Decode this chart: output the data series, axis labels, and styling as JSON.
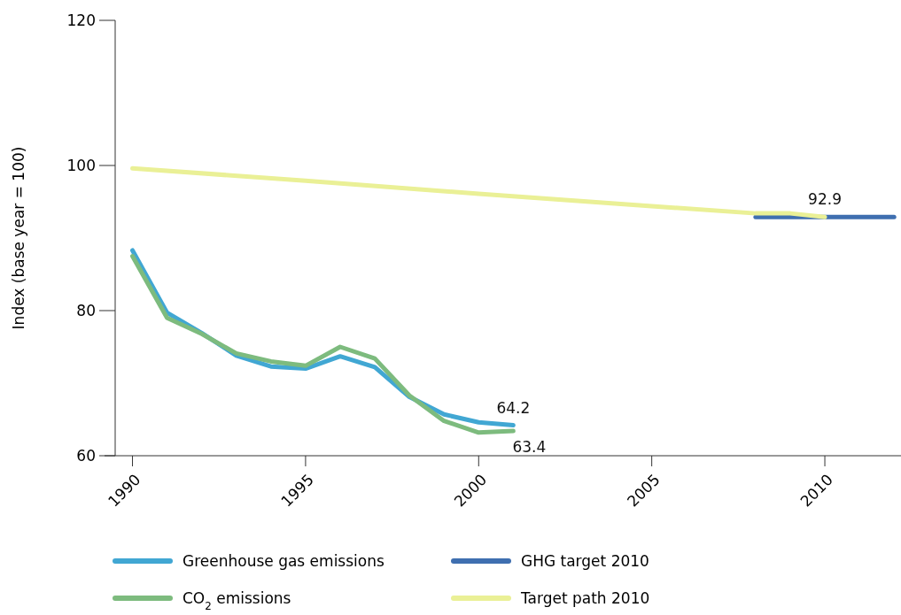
{
  "chart_data": {
    "type": "line",
    "ylabel": "Index (base year = 100)",
    "xlim": [
      1989.5,
      2012.2
    ],
    "xticks": [
      1990,
      1995,
      2000,
      2005,
      2010
    ],
    "ylim": [
      60,
      120
    ],
    "yticks": [
      60,
      80,
      100,
      120
    ],
    "grid": false,
    "legend": "bottom",
    "marker": "none",
    "line_style": "solid",
    "series": [
      {
        "name": "Greenhouse gas emissions",
        "color": "#41a7d3",
        "x": [
          1990,
          1991,
          1992,
          1993,
          1994,
          1995,
          1996,
          1997,
          1998,
          1999,
          2000,
          2001
        ],
        "values": [
          88.3,
          79.7,
          76.9,
          73.8,
          72.3,
          72.0,
          73.7,
          72.2,
          68.1,
          65.7,
          64.6,
          64.2
        ],
        "value_labels": [
          null,
          null,
          null,
          null,
          null,
          null,
          null,
          null,
          null,
          null,
          null,
          "64.2"
        ]
      },
      {
        "name": "GHG target 2010",
        "color": "#3f6fb0",
        "x": [
          2008,
          2010,
          2012
        ],
        "values": [
          92.9,
          92.9,
          92.9
        ],
        "value_labels": [
          null,
          "92.9",
          null
        ]
      },
      {
        "name": "CO$_{2}$ emissions",
        "color": "#7dbb7e",
        "x": [
          1990,
          1991,
          1992,
          1993,
          1994,
          1995,
          1996,
          1997,
          1998,
          1999,
          2000,
          2001
        ],
        "values": [
          87.5,
          79.0,
          76.8,
          74.1,
          73.0,
          72.4,
          75.0,
          73.4,
          68.3,
          64.8,
          63.2,
          63.4
        ],
        "value_labels": [
          null,
          null,
          null,
          null,
          null,
          null,
          null,
          null,
          null,
          null,
          null,
          "63.4"
        ]
      },
      {
        "name": "Target path 2010",
        "color": "#eaf096",
        "x": [
          1990,
          1995,
          2000,
          2005,
          2008,
          2009,
          2010
        ],
        "values": [
          99.6,
          97.9,
          96.1,
          94.4,
          93.4,
          93.4,
          92.9
        ]
      }
    ]
  }
}
